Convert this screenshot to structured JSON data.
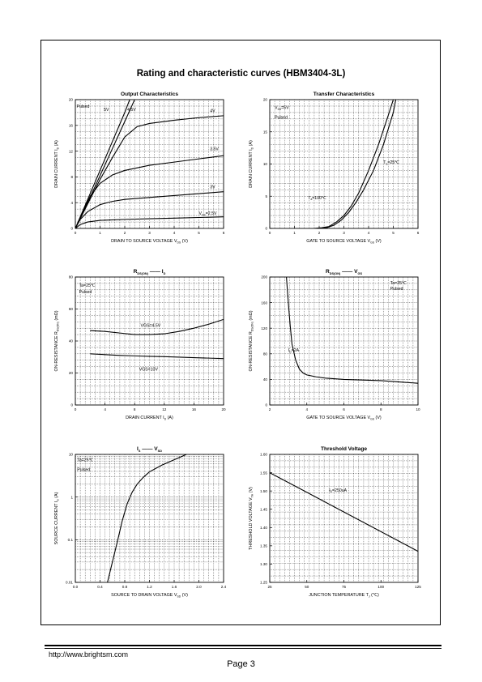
{
  "page": {
    "title": "Rating and characteristic curves (HBM3404-3L)",
    "footer_url": "http://www.brightsm.com",
    "page_number": "Page 3"
  },
  "chart_data": [
    {
      "type": "line",
      "title": "Output Characteristics",
      "xlabel": "DRAIN TO SOURCE VOLTAGE    V",
      "xlabel_sub": "DS",
      "xlabel_unit": "(V)",
      "ylabel": "DRAIN CURRENT    I",
      "ylabel_sub": "D",
      "ylabel_unit": "(A)",
      "xlim": [
        0,
        6
      ],
      "ylim": [
        0,
        20
      ],
      "xticks": [
        0,
        1,
        2,
        3,
        4,
        5,
        6
      ],
      "yticks": [
        0,
        4,
        8,
        12,
        16,
        20
      ],
      "grid": true,
      "annotations": [
        {
          "text": "Pulsed",
          "x": 0.05,
          "y": 19.0
        },
        {
          "text": "5V",
          "x": 1.15,
          "y": 18.5
        },
        {
          "text": "4.5V",
          "x": 2.1,
          "y": 18.5
        },
        {
          "text": "4V",
          "x": 5.45,
          "y": 18.3
        },
        {
          "text": "3.5V",
          "x": 5.45,
          "y": 12.4
        },
        {
          "text": "3V",
          "x": 5.45,
          "y": 6.5
        },
        {
          "text": "V",
          "x": 5.0,
          "y": 2.4,
          "sub": "GS",
          "tail": "=2.5V"
        }
      ],
      "series": [
        {
          "x": [
            0,
            0.5,
            1.0,
            1.5,
            2.0,
            2.2
          ],
          "y": [
            0,
            4.5,
            9.0,
            13.5,
            18.0,
            20.0
          ]
        },
        {
          "x": [
            0,
            0.5,
            1.0,
            1.5,
            2.0,
            2.4
          ],
          "y": [
            0,
            4.0,
            8.2,
            12.4,
            16.6,
            20.0
          ]
        },
        {
          "x": [
            0,
            0.5,
            1.0,
            1.5,
            2.0,
            2.5,
            3.0,
            4.0,
            5.0,
            6.0
          ],
          "y": [
            0,
            3.8,
            7.6,
            11.0,
            14.2,
            15.8,
            16.3,
            16.8,
            17.2,
            17.5
          ]
        },
        {
          "x": [
            0,
            0.3,
            0.6,
            1.0,
            1.5,
            2.0,
            3.0,
            4.0,
            5.0,
            6.0
          ],
          "y": [
            0,
            2.6,
            5.0,
            7.0,
            8.3,
            9.0,
            9.8,
            10.3,
            10.8,
            11.3
          ]
        },
        {
          "x": [
            0,
            0.2,
            0.5,
            1.0,
            1.5,
            2.0,
            3.0,
            4.0,
            5.0,
            6.0
          ],
          "y": [
            0,
            1.4,
            2.6,
            3.7,
            4.2,
            4.5,
            4.8,
            5.1,
            5.4,
            5.7
          ]
        },
        {
          "x": [
            0,
            0.2,
            0.5,
            1.0,
            2.0,
            3.0,
            4.0,
            5.0,
            6.0
          ],
          "y": [
            0,
            0.6,
            1.0,
            1.25,
            1.4,
            1.5,
            1.6,
            1.7,
            1.8
          ]
        }
      ]
    },
    {
      "type": "line",
      "title": "Transfer Characteristics",
      "xlabel": "GATE TO SOURCE VOLTAGE    V",
      "xlabel_sub": "GS",
      "xlabel_unit": "(V)",
      "ylabel": "DRAIN CURRENT    I",
      "ylabel_sub": "D",
      "ylabel_unit": "(A)",
      "xlim": [
        0,
        6
      ],
      "ylim": [
        0,
        20
      ],
      "xticks": [
        0,
        1,
        2,
        3,
        4,
        5,
        6
      ],
      "yticks": [
        0,
        5,
        10,
        15,
        20
      ],
      "grid": true,
      "annotations": [
        {
          "text": "V",
          "x": 0.2,
          "y": 18.8,
          "sub": "DS",
          "tail": "=5V"
        },
        {
          "text": "Pulsed",
          "x": 0.2,
          "y": 17.3
        },
        {
          "text": "T",
          "x": 4.6,
          "y": 10.3,
          "sub": "a",
          "tail": "=25℃"
        },
        {
          "text": "T",
          "x": 1.55,
          "y": 4.8,
          "sub": "a",
          "tail": "=100℃"
        }
      ],
      "series": [
        {
          "x": [
            2.0,
            2.3,
            2.6,
            2.9,
            3.2,
            3.5,
            3.8,
            4.2,
            4.6,
            5.0,
            5.1
          ],
          "y": [
            0,
            0.1,
            0.5,
            1.3,
            2.5,
            4.1,
            6.0,
            9.0,
            13.0,
            18.0,
            20.0
          ]
        },
        {
          "x": [
            1.8,
            2.1,
            2.4,
            2.7,
            3.0,
            3.3,
            3.6,
            4.0,
            4.4,
            4.8,
            5.0
          ],
          "y": [
            0,
            0.1,
            0.3,
            1.0,
            2.0,
            3.5,
            5.5,
            9.0,
            13.0,
            17.6,
            20.0
          ]
        }
      ]
    },
    {
      "type": "line",
      "title": "R",
      "title_sub": "DS(ON)",
      "title_tail": "I",
      "title_tail_sub": "D",
      "xlabel": "DRAIN CURRENT    I",
      "xlabel_sub": "D",
      "xlabel_unit": "(A)",
      "ylabel": "ON-RESISTANCE    R",
      "ylabel_sub": "DS(ON)",
      "ylabel_unit": "(mΩ)",
      "xlim": [
        0,
        20
      ],
      "ylim": [
        0,
        80
      ],
      "xticks": [
        0,
        4,
        8,
        12,
        16,
        20
      ],
      "yticks": [
        0,
        20,
        40,
        60,
        80
      ],
      "grid": true,
      "annotations": [
        {
          "text": "Ta=25℃",
          "x": 0.5,
          "y": 75
        },
        {
          "text": "Pulsed",
          "x": 0.5,
          "y": 71
        },
        {
          "text": "VGS=4.5V",
          "x": 8.8,
          "y": 50
        },
        {
          "text": "VGS=10V",
          "x": 8.6,
          "y": 22.5
        }
      ],
      "series": [
        {
          "x": [
            2,
            4,
            6,
            8,
            10,
            12,
            14,
            16,
            18,
            20
          ],
          "y": [
            46.5,
            46.0,
            45.0,
            44.0,
            44.0,
            44.5,
            46.0,
            48.0,
            50.5,
            53.5
          ]
        },
        {
          "x": [
            2,
            4,
            6,
            8,
            10,
            12,
            14,
            16,
            18,
            20
          ],
          "y": [
            32.0,
            31.5,
            31.0,
            30.7,
            30.4,
            30.2,
            29.9,
            29.6,
            29.3,
            29.0
          ]
        }
      ]
    },
    {
      "type": "line",
      "title": "R",
      "title_sub": "DS(ON)",
      "title_tail": "V",
      "title_tail_sub": "GS",
      "xlabel": "GATE TO SOURCE VOLTAGE    V",
      "xlabel_sub": "GS",
      "xlabel_unit": "(V)",
      "ylabel": "ON-RESISTANCE    R",
      "ylabel_sub": "DS(ON)",
      "ylabel_unit": "(mΩ)",
      "xlim": [
        2,
        10
      ],
      "ylim": [
        0,
        200
      ],
      "xticks": [
        2,
        4,
        6,
        8,
        10
      ],
      "yticks": [
        0,
        40,
        80,
        120,
        160,
        200
      ],
      "grid": true,
      "annotations": [
        {
          "text": "Ta=25℃",
          "x": 8.5,
          "y": 191
        },
        {
          "text": "Pulsed",
          "x": 8.5,
          "y": 182
        },
        {
          "text": "I",
          "x": 3.0,
          "y": 86,
          "sub": "D",
          "tail": "=2A"
        }
      ],
      "series": [
        {
          "x": [
            2.9,
            3.0,
            3.1,
            3.2,
            3.4,
            3.6,
            3.8,
            4.0,
            4.5,
            5.0,
            6.0,
            7.0,
            8.0,
            9.0,
            10.0
          ],
          "y": [
            200,
            160,
            125,
            95,
            70,
            56,
            50,
            47,
            44,
            42,
            40,
            39,
            38,
            36,
            34
          ]
        }
      ]
    },
    {
      "type": "line",
      "title": "I",
      "title_sub": "S",
      "title_tail": "V",
      "title_tail_sub": "SD",
      "xlabel": "SOURCE TO DRAIN VOLTAGE    V",
      "xlabel_sub": "SD",
      "xlabel_unit": "(V)",
      "ylabel": "SOURCE  CURRENT    I",
      "ylabel_sub": "S",
      "ylabel_unit": "(A)",
      "xlim": [
        0,
        2.4
      ],
      "ylim": [
        0.01,
        10
      ],
      "yscale": "log",
      "xticks": [
        0.0,
        0.4,
        0.8,
        1.2,
        1.6,
        2.0,
        2.4
      ],
      "xticklabels": [
        "0.0",
        "0.4",
        "0.8",
        "1.2",
        "1.6",
        "2.0",
        "2.4"
      ],
      "yticks": [
        0.01,
        0.1,
        1,
        10
      ],
      "yticklabels": [
        "0.01",
        "0.1",
        "1",
        "10"
      ],
      "grid": true,
      "annotations": [
        {
          "text": "Ta=25℃",
          "x": 0.03,
          "y": 7.5
        },
        {
          "text": "Pulsed",
          "x": 0.03,
          "y": 4.5
        }
      ],
      "series": [
        {
          "x": [
            0.52,
            0.6,
            0.68,
            0.76,
            0.84,
            0.92,
            1.0,
            1.1,
            1.2,
            1.4,
            1.6,
            1.8
          ],
          "y": [
            0.01,
            0.03,
            0.09,
            0.28,
            0.7,
            1.3,
            2.0,
            2.9,
            3.9,
            5.6,
            7.5,
            10.0
          ]
        }
      ]
    },
    {
      "type": "line",
      "title": "Threshold Voltage",
      "xlabel": "JUNCTION TEMPERATURE    T",
      "xlabel_sub": "J",
      "xlabel_unit": "(℃)",
      "ylabel": "THRESHOLD VOLTAGE    V",
      "ylabel_sub": "TH",
      "ylabel_unit": "(V)",
      "xlim": [
        25,
        125
      ],
      "ylim": [
        1.25,
        1.6
      ],
      "xticks": [
        25,
        50,
        75,
        100,
        125
      ],
      "yticks": [
        1.25,
        1.3,
        1.35,
        1.4,
        1.45,
        1.5,
        1.55,
        1.6
      ],
      "yticklabels": [
        "1.25",
        "1.30",
        "1.35",
        "1.40",
        "1.45",
        "1.50",
        "1.55",
        "1.60"
      ],
      "grid": true,
      "annotations": [
        {
          "text": "I",
          "x": 65,
          "y": 1.503,
          "sub": "D",
          "tail": "=250uA"
        }
      ],
      "series": [
        {
          "x": [
            25,
            125
          ],
          "y": [
            1.55,
            1.335
          ]
        }
      ]
    }
  ]
}
